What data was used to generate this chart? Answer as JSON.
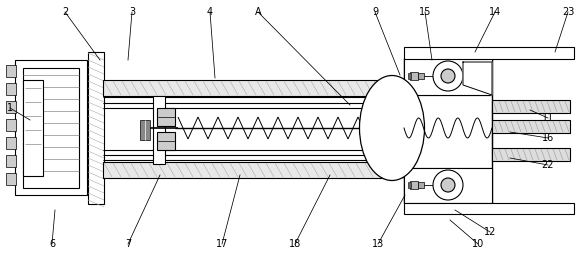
{
  "fig_width": 5.82,
  "fig_height": 2.56,
  "dpi": 100,
  "bg_color": "#ffffff",
  "lc": "#000000",
  "gray_light": "#cccccc",
  "gray_med": "#aaaaaa",
  "gray_dark": "#888888",
  "label_fs": 7.0,
  "labels": [
    [
      "1",
      10,
      108,
      30,
      120
    ],
    [
      "2",
      65,
      12,
      100,
      60
    ],
    [
      "3",
      132,
      12,
      128,
      60
    ],
    [
      "4",
      210,
      12,
      215,
      78
    ],
    [
      "A",
      258,
      12,
      350,
      105
    ],
    [
      "6",
      52,
      244,
      55,
      210
    ],
    [
      "7",
      128,
      244,
      160,
      175
    ],
    [
      "9",
      375,
      12,
      400,
      75
    ],
    [
      "10",
      478,
      244,
      450,
      220
    ],
    [
      "11",
      548,
      118,
      530,
      110
    ],
    [
      "12",
      490,
      232,
      455,
      210
    ],
    [
      "13",
      378,
      244,
      405,
      195
    ],
    [
      "14",
      495,
      12,
      475,
      52
    ],
    [
      "15",
      425,
      12,
      432,
      60
    ],
    [
      "16",
      548,
      138,
      510,
      132
    ],
    [
      "17",
      222,
      244,
      240,
      175
    ],
    [
      "18",
      295,
      244,
      330,
      175
    ],
    [
      "22",
      548,
      165,
      510,
      158
    ],
    [
      "23",
      568,
      12,
      555,
      52
    ]
  ]
}
